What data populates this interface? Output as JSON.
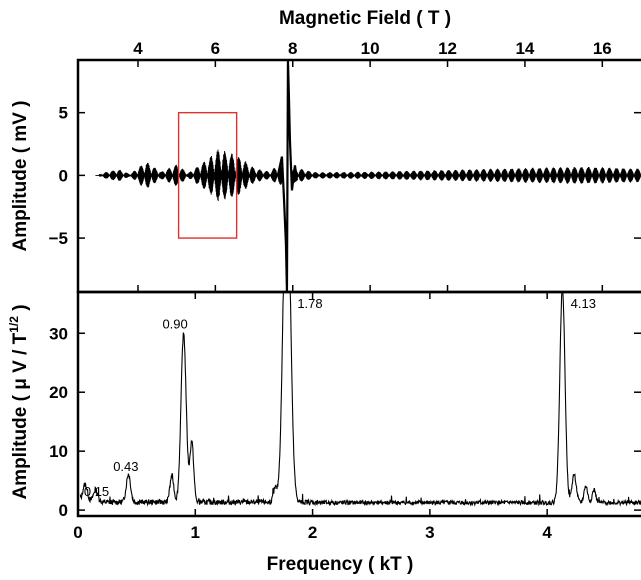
{
  "chart_data": [
    {
      "type": "line",
      "panel": "top",
      "x_top_label": "Magnetic Field ( T )",
      "x_top_ticks": [
        "4",
        "6",
        "8",
        "10",
        "12",
        "14",
        "16"
      ],
      "x_top_tick_values": [
        4,
        6,
        8,
        10,
        12,
        14,
        16
      ],
      "xlim": [
        2.45,
        17.0
      ],
      "ylabel": "Amplitude ( mV )",
      "y_ticks": [
        "5",
        "0",
        "−5"
      ],
      "y_tick_values": [
        5,
        0,
        -5
      ],
      "ylim": [
        -9.3,
        9.2
      ],
      "highlight_box": {
        "x_range": [
          5.05,
          6.55
        ],
        "y_range": [
          -5.0,
          5.0
        ],
        "color": "#e03030"
      },
      "spike": {
        "x": 7.85,
        "y_min": -9.3,
        "y_max": 9.2
      },
      "envelope": [
        {
          "x": 2.9,
          "amp": 0.0
        },
        {
          "x": 3.2,
          "amp": 0.3
        },
        {
          "x": 3.5,
          "amp": 0.5
        },
        {
          "x": 3.8,
          "amp": 0.1
        },
        {
          "x": 4.2,
          "amp": 1.15
        },
        {
          "x": 4.6,
          "amp": 0.3
        },
        {
          "x": 5.0,
          "amp": 0.9
        },
        {
          "x": 5.3,
          "amp": 0.2
        },
        {
          "x": 5.7,
          "amp": 1.1
        },
        {
          "x": 6.1,
          "amp": 2.15
        },
        {
          "x": 6.6,
          "amp": 1.6
        },
        {
          "x": 7.0,
          "amp": 0.6
        },
        {
          "x": 7.4,
          "amp": 0.3
        },
        {
          "x": 7.6,
          "amp": 0.8
        },
        {
          "x": 8.1,
          "amp": 0.6
        },
        {
          "x": 8.6,
          "amp": 0.25
        },
        {
          "x": 10.0,
          "amp": 0.3
        },
        {
          "x": 12.0,
          "amp": 0.45
        },
        {
          "x": 14.0,
          "amp": 0.6
        },
        {
          "x": 15.5,
          "amp": 0.7
        },
        {
          "x": 17.0,
          "amp": 0.55
        }
      ]
    },
    {
      "type": "line",
      "panel": "bottom",
      "xlabel": "Frequency ( kT )",
      "x_ticks": [
        "0",
        "1",
        "2",
        "3",
        "4"
      ],
      "x_tick_values": [
        0,
        1,
        2,
        3,
        4
      ],
      "xlim": [
        0.0,
        4.8
      ],
      "ylabel": "Amplitude ( μ V / T",
      "ylabel_sup": "1/2",
      "ylabel_end": " )",
      "y_ticks": [
        "30",
        "20",
        "10",
        "0"
      ],
      "y_tick_values": [
        30,
        20,
        10,
        0
      ],
      "ylim": [
        -1.0,
        37.0
      ],
      "peaks": [
        {
          "x": 0.06,
          "y": 3.0,
          "w": 0.02
        },
        {
          "x": 0.15,
          "y": 2.0,
          "w": 0.02
        },
        {
          "x": 0.43,
          "y": 4.8,
          "w": 0.018
        },
        {
          "x": 0.8,
          "y": 4.5,
          "w": 0.016
        },
        {
          "x": 0.9,
          "y": 28.5,
          "w": 0.022
        },
        {
          "x": 0.97,
          "y": 10.2,
          "w": 0.016
        },
        {
          "x": 1.68,
          "y": 2.2,
          "w": 0.015
        },
        {
          "x": 1.78,
          "y": 60.0,
          "w": 0.03
        },
        {
          "x": 4.13,
          "y": 36.5,
          "w": 0.022
        },
        {
          "x": 4.23,
          "y": 4.8,
          "w": 0.018
        },
        {
          "x": 4.33,
          "y": 2.8,
          "w": 0.015
        },
        {
          "x": 4.4,
          "y": 2.2,
          "w": 0.015
        }
      ],
      "annotations": [
        {
          "text": "0.15",
          "x": 0.05,
          "y": 2.4
        },
        {
          "text": "0.43",
          "x": 0.3,
          "y": 6.6
        },
        {
          "text": "0.90",
          "x": 0.72,
          "y": 30.8
        },
        {
          "text": "1.78",
          "x": 1.87,
          "y": 34.3
        },
        {
          "text": "4.13",
          "x": 4.2,
          "y": 34.3
        }
      ]
    }
  ]
}
